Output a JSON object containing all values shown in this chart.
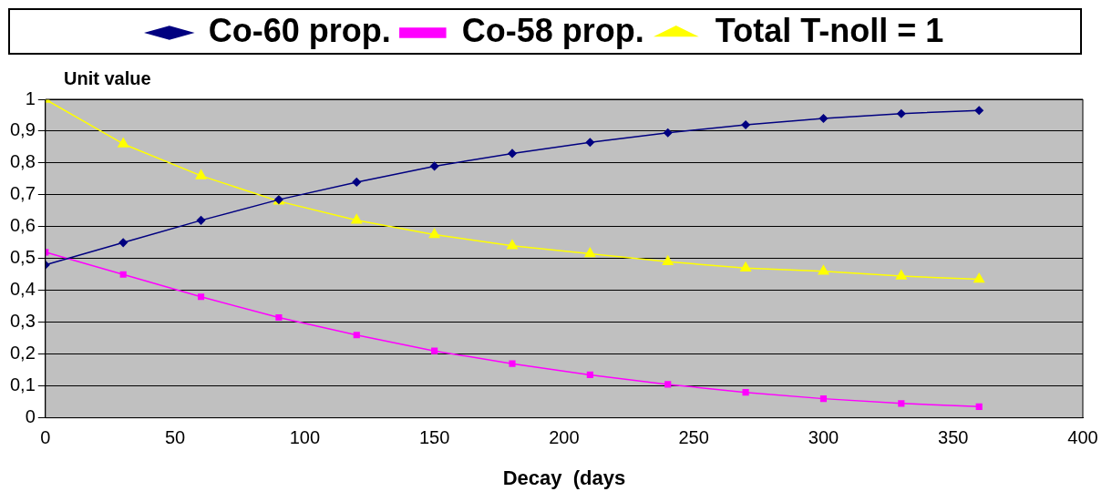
{
  "chart_data": {
    "type": "line",
    "xlabel": "Decay  (days",
    "ylabel": "Unit value",
    "x": [
      0,
      30,
      60,
      90,
      120,
      150,
      180,
      210,
      240,
      270,
      300,
      330,
      360
    ],
    "series": [
      {
        "name": "Co-60 prop.",
        "color": "#000080",
        "marker": "diamond",
        "values": [
          0.48,
          0.55,
          0.62,
          0.685,
          0.74,
          0.79,
          0.83,
          0.865,
          0.895,
          0.92,
          0.94,
          0.955,
          0.965
        ]
      },
      {
        "name": "Co-58 prop.",
        "color": "#ff00ff",
        "marker": "square",
        "values": [
          0.52,
          0.45,
          0.38,
          0.315,
          0.26,
          0.21,
          0.17,
          0.135,
          0.105,
          0.08,
          0.06,
          0.045,
          0.035
        ]
      },
      {
        "name": "Total T-noll = 1",
        "color": "#ffff00",
        "marker": "triangle",
        "values": [
          1,
          0.86,
          0.76,
          0.68,
          0.62,
          0.575,
          0.54,
          0.515,
          0.49,
          0.47,
          0.46,
          0.445,
          0.435
        ]
      }
    ],
    "xlim": [
      0,
      400
    ],
    "xticks": [
      0,
      50,
      100,
      150,
      200,
      250,
      300,
      350,
      400
    ],
    "ylim": [
      0,
      1
    ],
    "yticks": [
      0,
      {
        "value": 0.1,
        "label": "0,1"
      },
      {
        "value": 0.2,
        "label": "0,2"
      },
      {
        "value": 0.3,
        "label": "0,3"
      },
      {
        "value": 0.4,
        "label": "0,4"
      },
      {
        "value": 0.5,
        "label": "0,5"
      },
      {
        "value": 0.6,
        "label": "0,6"
      },
      {
        "value": 0.7,
        "label": "0,7"
      },
      {
        "value": 0.8,
        "label": "0,8"
      },
      {
        "value": 0.9,
        "label": "0,9"
      },
      1
    ],
    "grid": "y",
    "legend": "top",
    "line_style": "solid"
  }
}
